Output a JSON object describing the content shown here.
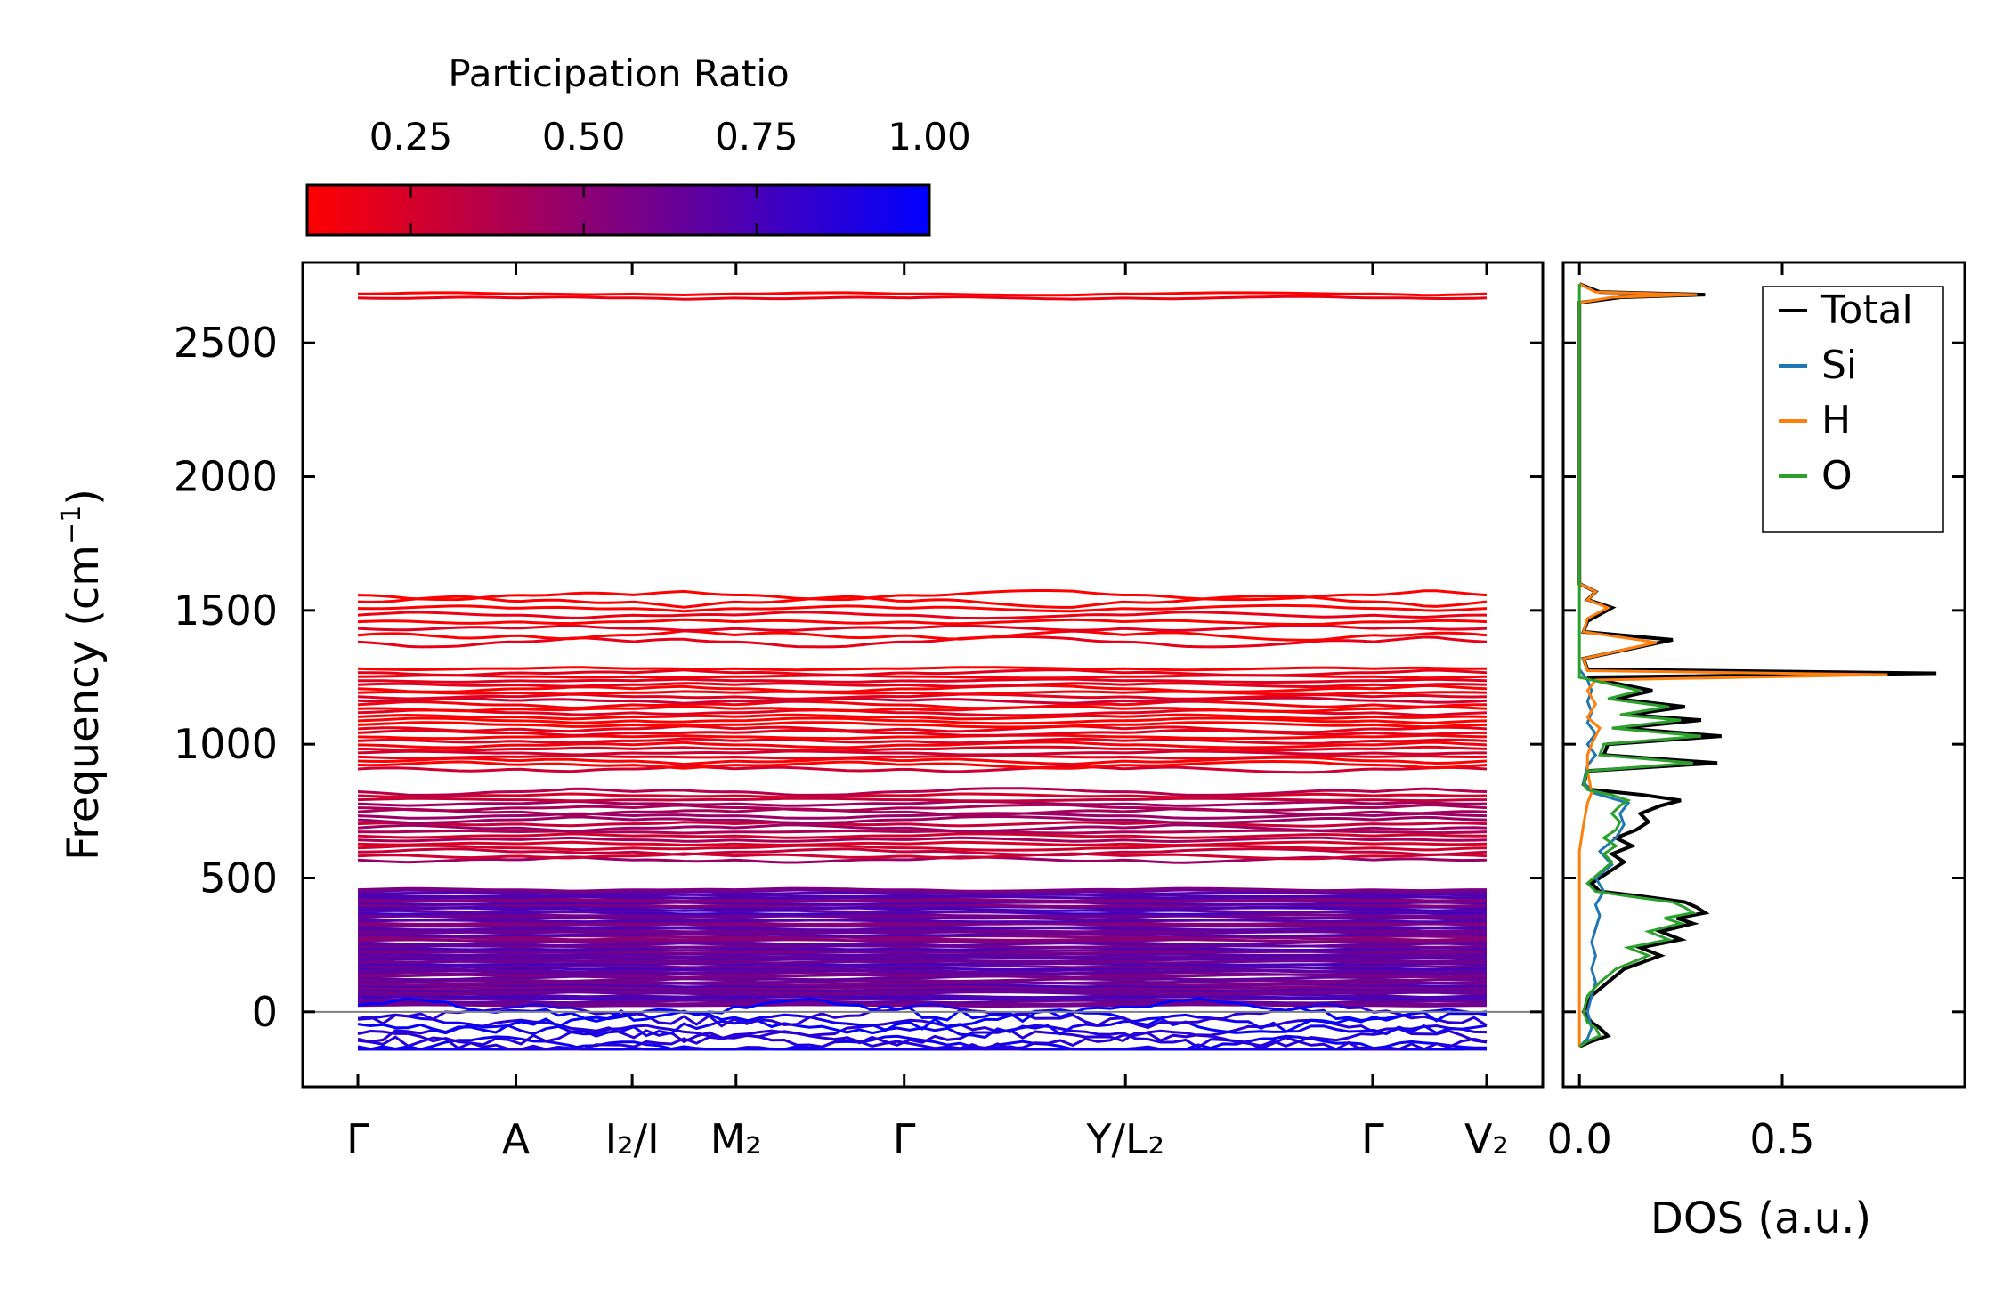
{
  "chart_data": [
    {
      "type": "line",
      "subtype": "phonon-band-structure",
      "ylabel": "Frequency (cm⁻¹)",
      "ylim": [
        -280,
        2800
      ],
      "yticks": [
        "2500",
        "2000",
        "1500",
        "1000",
        "500",
        "0"
      ],
      "ytick_values": [
        2500,
        2000,
        1500,
        1000,
        500,
        0
      ],
      "kpath": [
        {
          "label": "Γ",
          "pos": 0.0
        },
        {
          "label": "A",
          "pos": 0.14
        },
        {
          "label": "I₂/I",
          "pos": 0.243
        },
        {
          "label": "M₂",
          "pos": 0.335
        },
        {
          "label": "Γ",
          "pos": 0.484
        },
        {
          "label": "Y/L₂",
          "pos": 0.68
        },
        {
          "label": "Γ",
          "pos": 0.899
        },
        {
          "label": "V₂",
          "pos": 1.0
        }
      ],
      "band_groups": [
        {
          "range": [
            2660,
            2690
          ],
          "count": 2,
          "participation_ratio": 0.05
        },
        {
          "range": [
            1370,
            1570
          ],
          "count": 8,
          "participation_ratio": 0.08
        },
        {
          "range": [
            900,
            1290
          ],
          "count": 26,
          "participation_ratio": 0.15
        },
        {
          "range": [
            560,
            830
          ],
          "count": 18,
          "participation_ratio": 0.35
        },
        {
          "range": [
            20,
            460
          ],
          "count": 60,
          "participation_ratio": 0.65
        },
        {
          "range": [
            -140,
            60
          ],
          "count": 10,
          "participation_ratio": 0.9
        }
      ],
      "colorbar": {
        "title": "Participation Ratio",
        "ticks": [
          "0.25",
          "0.50",
          "0.75",
          "1.00"
        ],
        "tick_values": [
          0.25,
          0.5,
          0.75,
          1.0
        ],
        "range": [
          0.1,
          1.0
        ],
        "colors": [
          "#ff0000",
          "#0000ff"
        ]
      }
    },
    {
      "type": "line",
      "subtype": "density-of-states",
      "xlabel": "DOS (a.u.)",
      "xlim": [
        -0.04,
        0.95
      ],
      "xticks": [
        "0.0",
        "0.5"
      ],
      "xtick_values": [
        0.0,
        0.5
      ],
      "series": [
        {
          "name": "Total",
          "color": "#000000",
          "points": [
            [
              -130,
              0.0
            ],
            [
              -110,
              0.03
            ],
            [
              -90,
              0.07
            ],
            [
              -60,
              0.05
            ],
            [
              -40,
              0.03
            ],
            [
              0,
              0.01
            ],
            [
              60,
              0.03
            ],
            [
              110,
              0.07
            ],
            [
              160,
              0.11
            ],
            [
              210,
              0.2
            ],
            [
              240,
              0.15
            ],
            [
              270,
              0.25
            ],
            [
              300,
              0.2
            ],
            [
              330,
              0.28
            ],
            [
              350,
              0.24
            ],
            [
              370,
              0.31
            ],
            [
              390,
              0.29
            ],
            [
              410,
              0.26
            ],
            [
              430,
              0.16
            ],
            [
              450,
              0.05
            ],
            [
              480,
              0.03
            ],
            [
              520,
              0.07
            ],
            [
              560,
              0.11
            ],
            [
              590,
              0.08
            ],
            [
              620,
              0.13
            ],
            [
              650,
              0.09
            ],
            [
              680,
              0.14
            ],
            [
              710,
              0.17
            ],
            [
              740,
              0.15
            ],
            [
              770,
              0.2
            ],
            [
              790,
              0.25
            ],
            [
              810,
              0.16
            ],
            [
              830,
              0.03
            ],
            [
              850,
              0.01
            ],
            [
              900,
              0.02
            ],
            [
              930,
              0.34
            ],
            [
              960,
              0.06
            ],
            [
              1000,
              0.07
            ],
            [
              1030,
              0.35
            ],
            [
              1060,
              0.1
            ],
            [
              1090,
              0.3
            ],
            [
              1110,
              0.12
            ],
            [
              1140,
              0.26
            ],
            [
              1170,
              0.09
            ],
            [
              1200,
              0.18
            ],
            [
              1230,
              0.08
            ],
            [
              1250,
              0.02
            ],
            [
              1265,
              0.88
            ],
            [
              1280,
              0.02
            ],
            [
              1320,
              0.01
            ],
            [
              1390,
              0.23
            ],
            [
              1420,
              0.01
            ],
            [
              1460,
              0.02
            ],
            [
              1510,
              0.08
            ],
            [
              1540,
              0.02
            ],
            [
              1570,
              0.04
            ],
            [
              1600,
              0.0
            ],
            [
              2650,
              0.0
            ],
            [
              2670,
              0.1
            ],
            [
              2680,
              0.31
            ],
            [
              2690,
              0.05
            ],
            [
              2720,
              0.0
            ]
          ]
        },
        {
          "name": "Si",
          "color": "#1f77b4",
          "points": [
            [
              -130,
              0.0
            ],
            [
              -100,
              0.02
            ],
            [
              -60,
              0.03
            ],
            [
              0,
              0.02
            ],
            [
              60,
              0.03
            ],
            [
              110,
              0.04
            ],
            [
              160,
              0.03
            ],
            [
              210,
              0.04
            ],
            [
              260,
              0.03
            ],
            [
              310,
              0.04
            ],
            [
              360,
              0.05
            ],
            [
              400,
              0.04
            ],
            [
              450,
              0.06
            ],
            [
              500,
              0.04
            ],
            [
              550,
              0.08
            ],
            [
              600,
              0.05
            ],
            [
              650,
              0.09
            ],
            [
              700,
              0.11
            ],
            [
              740,
              0.1
            ],
            [
              780,
              0.12
            ],
            [
              820,
              0.03
            ],
            [
              860,
              0.01
            ],
            [
              920,
              0.02
            ],
            [
              960,
              0.04
            ],
            [
              1000,
              0.02
            ],
            [
              1040,
              0.04
            ],
            [
              1080,
              0.02
            ],
            [
              1120,
              0.03
            ],
            [
              1160,
              0.02
            ],
            [
              1200,
              0.03
            ],
            [
              1240,
              0.02
            ],
            [
              1280,
              0.0
            ]
          ]
        },
        {
          "name": "H",
          "color": "#ff7f0e",
          "points": [
            [
              -130,
              0.0
            ],
            [
              0,
              0.0
            ],
            [
              400,
              0.0
            ],
            [
              600,
              0.0
            ],
            [
              700,
              0.01
            ],
            [
              780,
              0.02
            ],
            [
              820,
              0.03
            ],
            [
              900,
              0.02
            ],
            [
              960,
              0.02
            ],
            [
              1000,
              0.03
            ],
            [
              1060,
              0.05
            ],
            [
              1100,
              0.02
            ],
            [
              1150,
              0.04
            ],
            [
              1200,
              0.02
            ],
            [
              1240,
              0.04
            ],
            [
              1260,
              0.76
            ],
            [
              1275,
              0.02
            ],
            [
              1320,
              0.01
            ],
            [
              1380,
              0.19
            ],
            [
              1420,
              0.01
            ],
            [
              1470,
              0.02
            ],
            [
              1510,
              0.07
            ],
            [
              1540,
              0.02
            ],
            [
              1570,
              0.04
            ],
            [
              1600,
              0.0
            ],
            [
              2650,
              0.0
            ],
            [
              2670,
              0.08
            ],
            [
              2680,
              0.29
            ],
            [
              2690,
              0.04
            ],
            [
              2720,
              0.0
            ]
          ]
        },
        {
          "name": "O",
          "color": "#2ca02c",
          "points": [
            [
              -130,
              0.0
            ],
            [
              -110,
              0.02
            ],
            [
              -90,
              0.05
            ],
            [
              -60,
              0.04
            ],
            [
              -40,
              0.02
            ],
            [
              0,
              0.01
            ],
            [
              60,
              0.02
            ],
            [
              110,
              0.05
            ],
            [
              160,
              0.09
            ],
            [
              210,
              0.17
            ],
            [
              240,
              0.12
            ],
            [
              270,
              0.22
            ],
            [
              300,
              0.17
            ],
            [
              330,
              0.25
            ],
            [
              350,
              0.21
            ],
            [
              370,
              0.28
            ],
            [
              390,
              0.26
            ],
            [
              410,
              0.23
            ],
            [
              430,
              0.13
            ],
            [
              450,
              0.04
            ],
            [
              480,
              0.02
            ],
            [
              520,
              0.05
            ],
            [
              560,
              0.08
            ],
            [
              590,
              0.06
            ],
            [
              620,
              0.09
            ],
            [
              650,
              0.06
            ],
            [
              680,
              0.09
            ],
            [
              710,
              0.1
            ],
            [
              740,
              0.08
            ],
            [
              770,
              0.1
            ],
            [
              790,
              0.12
            ],
            [
              810,
              0.08
            ],
            [
              830,
              0.02
            ],
            [
              850,
              0.01
            ],
            [
              900,
              0.02
            ],
            [
              930,
              0.28
            ],
            [
              960,
              0.05
            ],
            [
              1000,
              0.06
            ],
            [
              1030,
              0.3
            ],
            [
              1060,
              0.08
            ],
            [
              1090,
              0.25
            ],
            [
              1110,
              0.1
            ],
            [
              1140,
              0.22
            ],
            [
              1170,
              0.07
            ],
            [
              1200,
              0.15
            ],
            [
              1230,
              0.06
            ],
            [
              1250,
              0.0
            ],
            [
              1600,
              0.0
            ],
            [
              2720,
              0.0
            ]
          ]
        }
      ],
      "legend": [
        "Total",
        "Si",
        "H",
        "O"
      ],
      "legend_position": "top-right"
    }
  ]
}
